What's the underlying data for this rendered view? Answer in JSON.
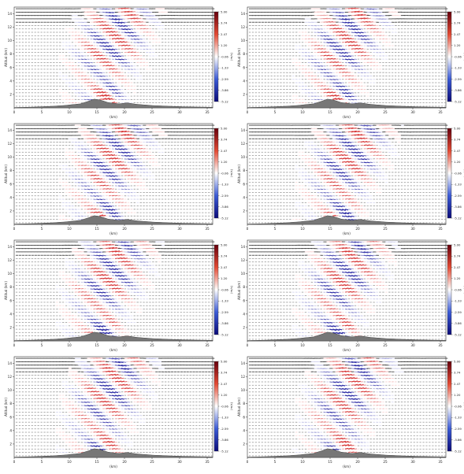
{
  "chart_data": {
    "type": "heatmap",
    "grid": "2x4",
    "xlabel": "(km)",
    "ylabel": "Altitud (km)",
    "colorbar_label": "(m/s)",
    "xlim": [
      0,
      36
    ],
    "ylim": [
      0,
      15
    ],
    "xticks": [
      "0",
      "5",
      "10",
      "15",
      "20",
      "25",
      "30",
      "35"
    ],
    "yticks": [
      "2",
      "4",
      "6",
      "8",
      "10",
      "12",
      "14"
    ],
    "colorbar_ticks": [
      "5.00",
      "3.74",
      "2.47",
      "1.20",
      "-0.06",
      "-1.33",
      "-2.59",
      "-3.86",
      "-5.12"
    ],
    "colors": {
      "positive": "#d7191c",
      "negative": "#1a1aa8",
      "terrain": "#777777"
    },
    "terrain_km": [
      [
        0,
        0.05
      ],
      [
        3,
        0.1
      ],
      [
        6,
        0.2
      ],
      [
        9,
        0.35
      ],
      [
        12,
        0.6
      ],
      [
        13.5,
        1.0
      ],
      [
        14.5,
        1.3
      ],
      [
        15.5,
        1.2
      ],
      [
        17,
        0.8
      ],
      [
        19,
        0.6
      ],
      [
        20.5,
        0.75
      ],
      [
        22,
        0.55
      ],
      [
        25,
        0.35
      ],
      [
        28,
        0.25
      ],
      [
        31,
        0.15
      ],
      [
        36,
        0.08
      ]
    ],
    "panels": [
      {
        "col": 0,
        "row": 0,
        "peak_x": 16.5,
        "phase": 0.0
      },
      {
        "col": 1,
        "row": 0,
        "peak_x": 16.5,
        "phase": 0.7
      },
      {
        "col": 0,
        "row": 1,
        "peak_x": 16.5,
        "phase": 1.4
      },
      {
        "col": 1,
        "row": 1,
        "peak_x": 17.0,
        "phase": 2.1
      },
      {
        "col": 0,
        "row": 2,
        "peak_x": 16.0,
        "phase": 2.8
      },
      {
        "col": 1,
        "row": 2,
        "peak_x": 16.5,
        "phase": 3.5
      },
      {
        "col": 0,
        "row": 3,
        "peak_x": 16.0,
        "phase": 4.2
      },
      {
        "col": 1,
        "row": 3,
        "peak_x": 17.0,
        "phase": 4.9
      }
    ]
  }
}
